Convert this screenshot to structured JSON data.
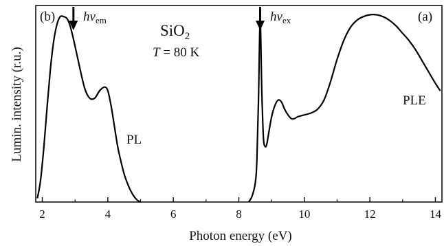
{
  "chart_data": {
    "type": "line",
    "xlabel": "Photon energy (eV)",
    "ylabel": "Lumin. intensity (r.u.)",
    "xlim": [
      1.8,
      14.2
    ],
    "ylim": [
      0,
      1.06
    ],
    "xticks": [
      2,
      4,
      6,
      8,
      10,
      12,
      14
    ],
    "grid": false,
    "series": [
      {
        "name": "PL",
        "x": [
          1.85,
          1.95,
          2.05,
          2.15,
          2.25,
          2.35,
          2.45,
          2.55,
          2.65,
          2.75,
          2.85,
          2.95,
          3.05,
          3.15,
          3.3,
          3.45,
          3.6,
          3.75,
          3.9,
          4.0,
          4.1,
          4.2,
          4.3,
          4.4,
          4.5,
          4.6,
          4.7,
          4.8,
          4.9,
          5.0
        ],
        "y": [
          0.02,
          0.12,
          0.3,
          0.52,
          0.72,
          0.87,
          0.96,
          1.0,
          1.0,
          0.99,
          0.95,
          0.88,
          0.8,
          0.72,
          0.61,
          0.56,
          0.56,
          0.6,
          0.62,
          0.6,
          0.52,
          0.41,
          0.3,
          0.22,
          0.15,
          0.1,
          0.06,
          0.03,
          0.01,
          0.0
        ]
      },
      {
        "name": "PLE",
        "x": [
          8.3,
          8.4,
          8.5,
          8.55,
          8.6,
          8.65,
          8.7,
          8.75,
          8.8,
          8.85,
          8.9,
          9.0,
          9.1,
          9.2,
          9.3,
          9.4,
          9.5,
          9.6,
          9.7,
          9.8,
          10.0,
          10.2,
          10.4,
          10.6,
          10.8,
          11.0,
          11.2,
          11.4,
          11.6,
          11.8,
          12.0,
          12.2,
          12.4,
          12.6,
          12.8,
          13.0,
          13.2,
          13.4,
          13.6,
          13.8,
          14.0,
          14.15
        ],
        "y": [
          0.0,
          0.03,
          0.1,
          0.22,
          0.55,
          0.98,
          0.6,
          0.35,
          0.3,
          0.31,
          0.36,
          0.46,
          0.52,
          0.55,
          0.54,
          0.5,
          0.47,
          0.45,
          0.45,
          0.46,
          0.47,
          0.48,
          0.5,
          0.55,
          0.65,
          0.77,
          0.87,
          0.94,
          0.98,
          1.0,
          1.01,
          1.01,
          1.0,
          0.98,
          0.95,
          0.91,
          0.87,
          0.82,
          0.76,
          0.7,
          0.64,
          0.6
        ]
      }
    ],
    "annotations": {
      "panel_b": "(b)",
      "panel_a": "(a)",
      "material": "SiO",
      "material_sub": "2",
      "temp_T": "T",
      "temp_rest": " = 80 K",
      "hv_em_main": "hν",
      "hv_em_sub": "em",
      "hv_ex_main": "hν",
      "hv_ex_sub": "ex",
      "pl_label": "PL",
      "ple_label": "PLE",
      "arrow_em_x": 2.95,
      "arrow_ex_x": 8.65
    }
  }
}
